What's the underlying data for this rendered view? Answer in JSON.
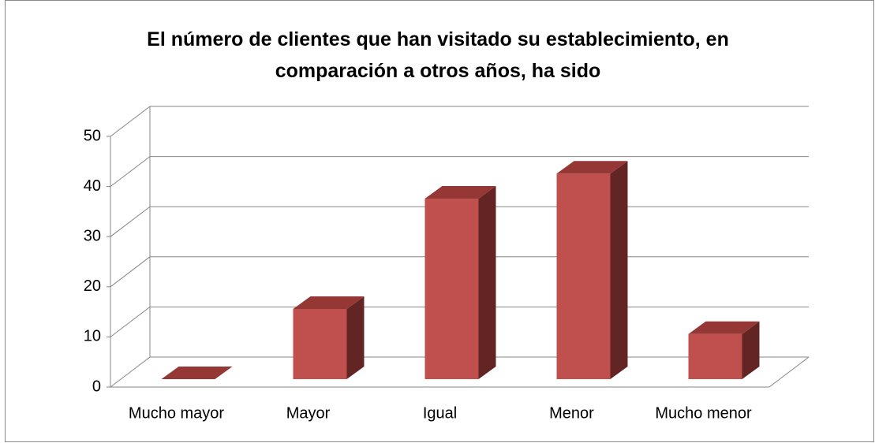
{
  "chart_data": {
    "type": "bar3d",
    "title": "El número de clientes que han visitado su establecimiento, en comparación a otros años, ha sido",
    "categories": [
      "Mucho mayor",
      "Mayor",
      "Igual",
      "Menor",
      "Mucho menor"
    ],
    "values": [
      0,
      14,
      36,
      41,
      9
    ],
    "color": "#c0504d",
    "ylim": [
      0,
      50
    ],
    "yticks": [
      0,
      10,
      20,
      30,
      40,
      50
    ],
    "grid": true
  }
}
